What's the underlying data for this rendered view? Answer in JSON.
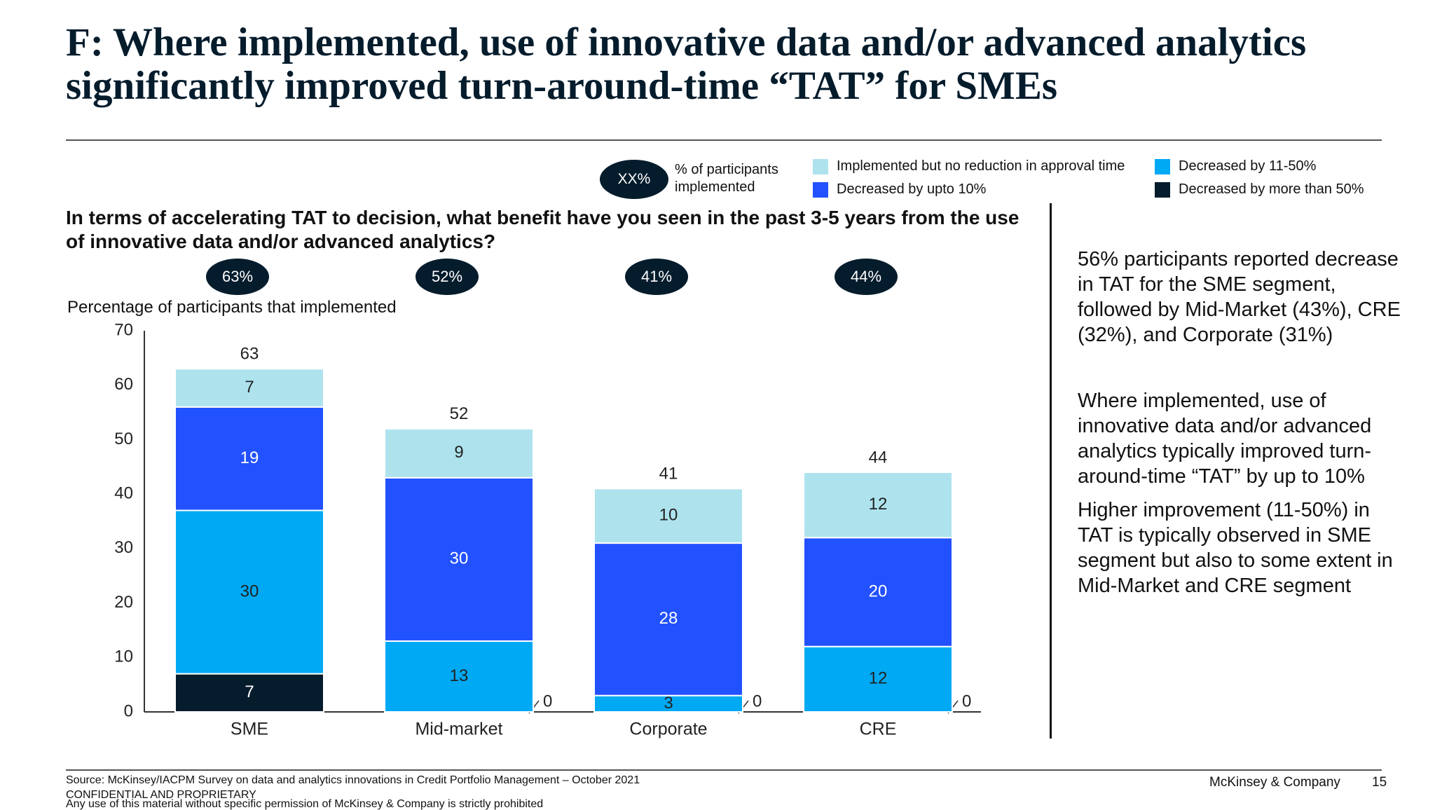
{
  "title": "F: Where implemented, use of innovative data and/or advanced analytics significantly improved turn-around-time “TAT” for SMEs",
  "legend_key": {
    "badge": "XX%",
    "text": "% of participants implemented"
  },
  "legend": [
    {
      "label": "Implemented but no reduction in approval time",
      "color": "#aee3ee"
    },
    {
      "label": "Decreased by upto 10%",
      "color": "#2251ff"
    },
    {
      "label": "Decreased by 11-50%",
      "color": "#00a9f4"
    },
    {
      "label": "Decreased by more than 50%",
      "color": "#051c2c"
    }
  ],
  "question": "In terms of accelerating TAT to decision, what benefit have you seen in the past 3-5 years from the use of innovative data and/or advanced analytics?",
  "pills": [
    "63%",
    "52%",
    "41%",
    "44%"
  ],
  "chart_data": {
    "type": "bar",
    "stacked": true,
    "categories": [
      "SME",
      "Mid-market",
      "Corporate",
      "CRE"
    ],
    "series": [
      {
        "name": "Decreased by more than 50%",
        "values": [
          7,
          0,
          0,
          0
        ],
        "color": "#051c2c"
      },
      {
        "name": "Decreased by 11-50%",
        "values": [
          30,
          13,
          3,
          12
        ],
        "color": "#00a9f4"
      },
      {
        "name": "Decreased by upto 10%",
        "values": [
          19,
          30,
          28,
          20
        ],
        "color": "#2251ff"
      },
      {
        "name": "Implemented but no reduction in approval time",
        "values": [
          7,
          9,
          10,
          12
        ],
        "color": "#aee3ee"
      }
    ],
    "totals": [
      63,
      52,
      41,
      44
    ],
    "ylabel": "Percentage of participants that implemented",
    "ylim": [
      0,
      70
    ],
    "yticks": [
      0,
      10,
      20,
      30,
      40,
      50,
      60,
      70
    ],
    "grid": false
  },
  "callouts": [
    "56% participants reported decrease in TAT for the SME segment, followed by Mid-Market (43%), CRE (32%), and Corporate (31%)",
    "Where implemented, use of innovative data and/or advanced analytics typically improved turn-around-time “TAT” by up to 10%",
    "Higher improvement (11-50%) in TAT is typically observed in SME segment but also to some extent in Mid-Market and CRE segment"
  ],
  "footer": {
    "source": "Source: McKinsey/IACPM Survey on data and analytics innovations in Credit Portfolio Management – October 2021",
    "confidential": "CONFIDENTIAL AND PROPRIETARY",
    "notice": "Any use of this material without specific permission of McKinsey & Company is strictly prohibited",
    "company": "McKinsey & Company",
    "page": "15"
  }
}
